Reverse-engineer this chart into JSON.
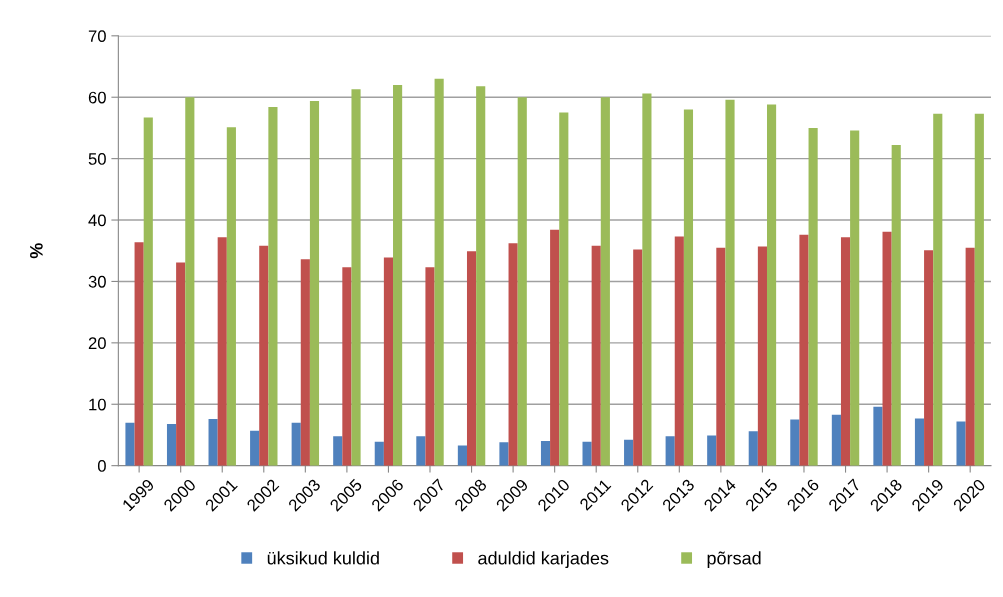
{
  "chart_data": {
    "type": "bar",
    "ylabel": "%",
    "categories": [
      "1999",
      "2000",
      "2001",
      "2002",
      "2003",
      "2005",
      "2006",
      "2007",
      "2008",
      "2009",
      "2010",
      "2011",
      "2012",
      "2013",
      "2014",
      "2015",
      "2016",
      "2017",
      "2018",
      "2019",
      "2020"
    ],
    "series": [
      {
        "name": "üksikud kuldid",
        "color": "#4f81bd",
        "values": [
          7.0,
          6.8,
          7.6,
          5.7,
          7.0,
          4.8,
          3.9,
          4.8,
          3.3,
          3.8,
          4.0,
          3.9,
          4.2,
          4.8,
          4.9,
          5.6,
          7.5,
          8.3,
          9.6,
          7.7,
          7.2
        ]
      },
      {
        "name": "aduldid karjades",
        "color": "#c0504d",
        "values": [
          36.4,
          33.1,
          37.2,
          35.8,
          33.6,
          32.3,
          33.9,
          32.3,
          34.9,
          36.2,
          38.4,
          35.8,
          35.2,
          37.3,
          35.5,
          35.7,
          37.6,
          37.2,
          38.1,
          35.1,
          35.5
        ]
      },
      {
        "name": "põrsad",
        "color": "#9bbb59",
        "values": [
          56.7,
          60.0,
          55.1,
          58.4,
          59.4,
          61.3,
          62.0,
          63.0,
          61.8,
          60.0,
          57.5,
          60.0,
          60.6,
          58.0,
          59.6,
          58.8,
          55.0,
          54.6,
          52.2,
          57.3,
          57.3
        ]
      }
    ],
    "ylim": [
      0,
      70
    ],
    "yticks": [
      0,
      10,
      20,
      30,
      40,
      50,
      60,
      70
    ],
    "grid": "y",
    "legend": "bottom"
  }
}
